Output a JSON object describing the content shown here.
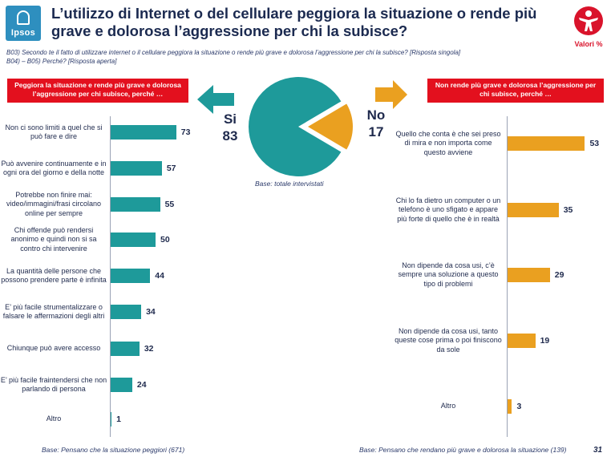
{
  "logo": {
    "text": "Ipsos"
  },
  "title": "L’utilizzo di Internet o del cellulare peggiora la situazione o rende più grave e dolorosa l’aggressione per chi la subisce?",
  "brand": {
    "text": "Valori %"
  },
  "question": {
    "line1": "B03) Secondo te il fatto di utilizzare internet o il cellulare peggiora la situazione o rende più grave e dolorosa l’aggressione per chi la subisce? [Risposta singola]",
    "line2": "B04) – B05) Perché? [Risposta aperta]"
  },
  "headers": {
    "left": "Peggiora la situazione e rende più grave e dolorosa l’aggressione per chi subisce, perché …",
    "right": "Non rende più grave e dolorosa l’aggressione per chi subisce, perché …"
  },
  "pie": {
    "yes_label": "Si",
    "yes_value": "83",
    "no_label": "No",
    "no_value": "17",
    "base": "Base: totale intervistati"
  },
  "colors": {
    "teal": "#1e9a9a",
    "orange": "#eaa020",
    "red": "#e3101e",
    "navy": "#1f2a4d"
  },
  "chart_data": [
    {
      "type": "pie",
      "categories": [
        "Si",
        "No"
      ],
      "values": [
        83,
        17
      ],
      "title": ""
    },
    {
      "type": "bar",
      "orientation": "horizontal",
      "title": "Peggiora la situazione e rende più grave e dolorosa l’aggressione per chi subisce, perché …",
      "categories": [
        "Non ci sono limiti a quel che si può fare e dire",
        "Può avvenire continuamente e in ogni ora del giorno e della notte",
        "Potrebbe non finire mai: video/immagini/frasi circolano online per sempre",
        "Chi offende può rendersi anonimo e quindi non si sa contro chi intervenire",
        "La quantità delle persone che possono prendere parte è infinita",
        "E’ più facile strumentalizzare o falsare le affermazioni degli altri",
        "Chiunque può avere accesso",
        "E’ più facile fraintendersi che non parlando di persona",
        "Altro"
      ],
      "values": [
        73,
        57,
        55,
        50,
        44,
        34,
        32,
        24,
        1
      ],
      "base": "Base: Pensano che la situazione peggiori (671)"
    },
    {
      "type": "bar",
      "orientation": "horizontal",
      "title": "Non rende più grave e dolorosa l’aggressione per chi subisce, perché …",
      "categories": [
        "Quello che conta è che sei preso di mira e non importa come questo avviene",
        "Chi lo fa dietro un computer o un telefono è uno sfigato e appare più forte di quello che è in realtà",
        "Non dipende da cosa usi, c’è sempre una soluzione a questo tipo di problemi",
        "Non dipende da cosa usi, tanto queste cose prima o poi finiscono da sole",
        "Altro"
      ],
      "values": [
        53,
        35,
        29,
        19,
        3
      ],
      "base": "Base: Pensano che rendano più grave e dolorosa la situazione (139)"
    }
  ],
  "page_number": "31"
}
